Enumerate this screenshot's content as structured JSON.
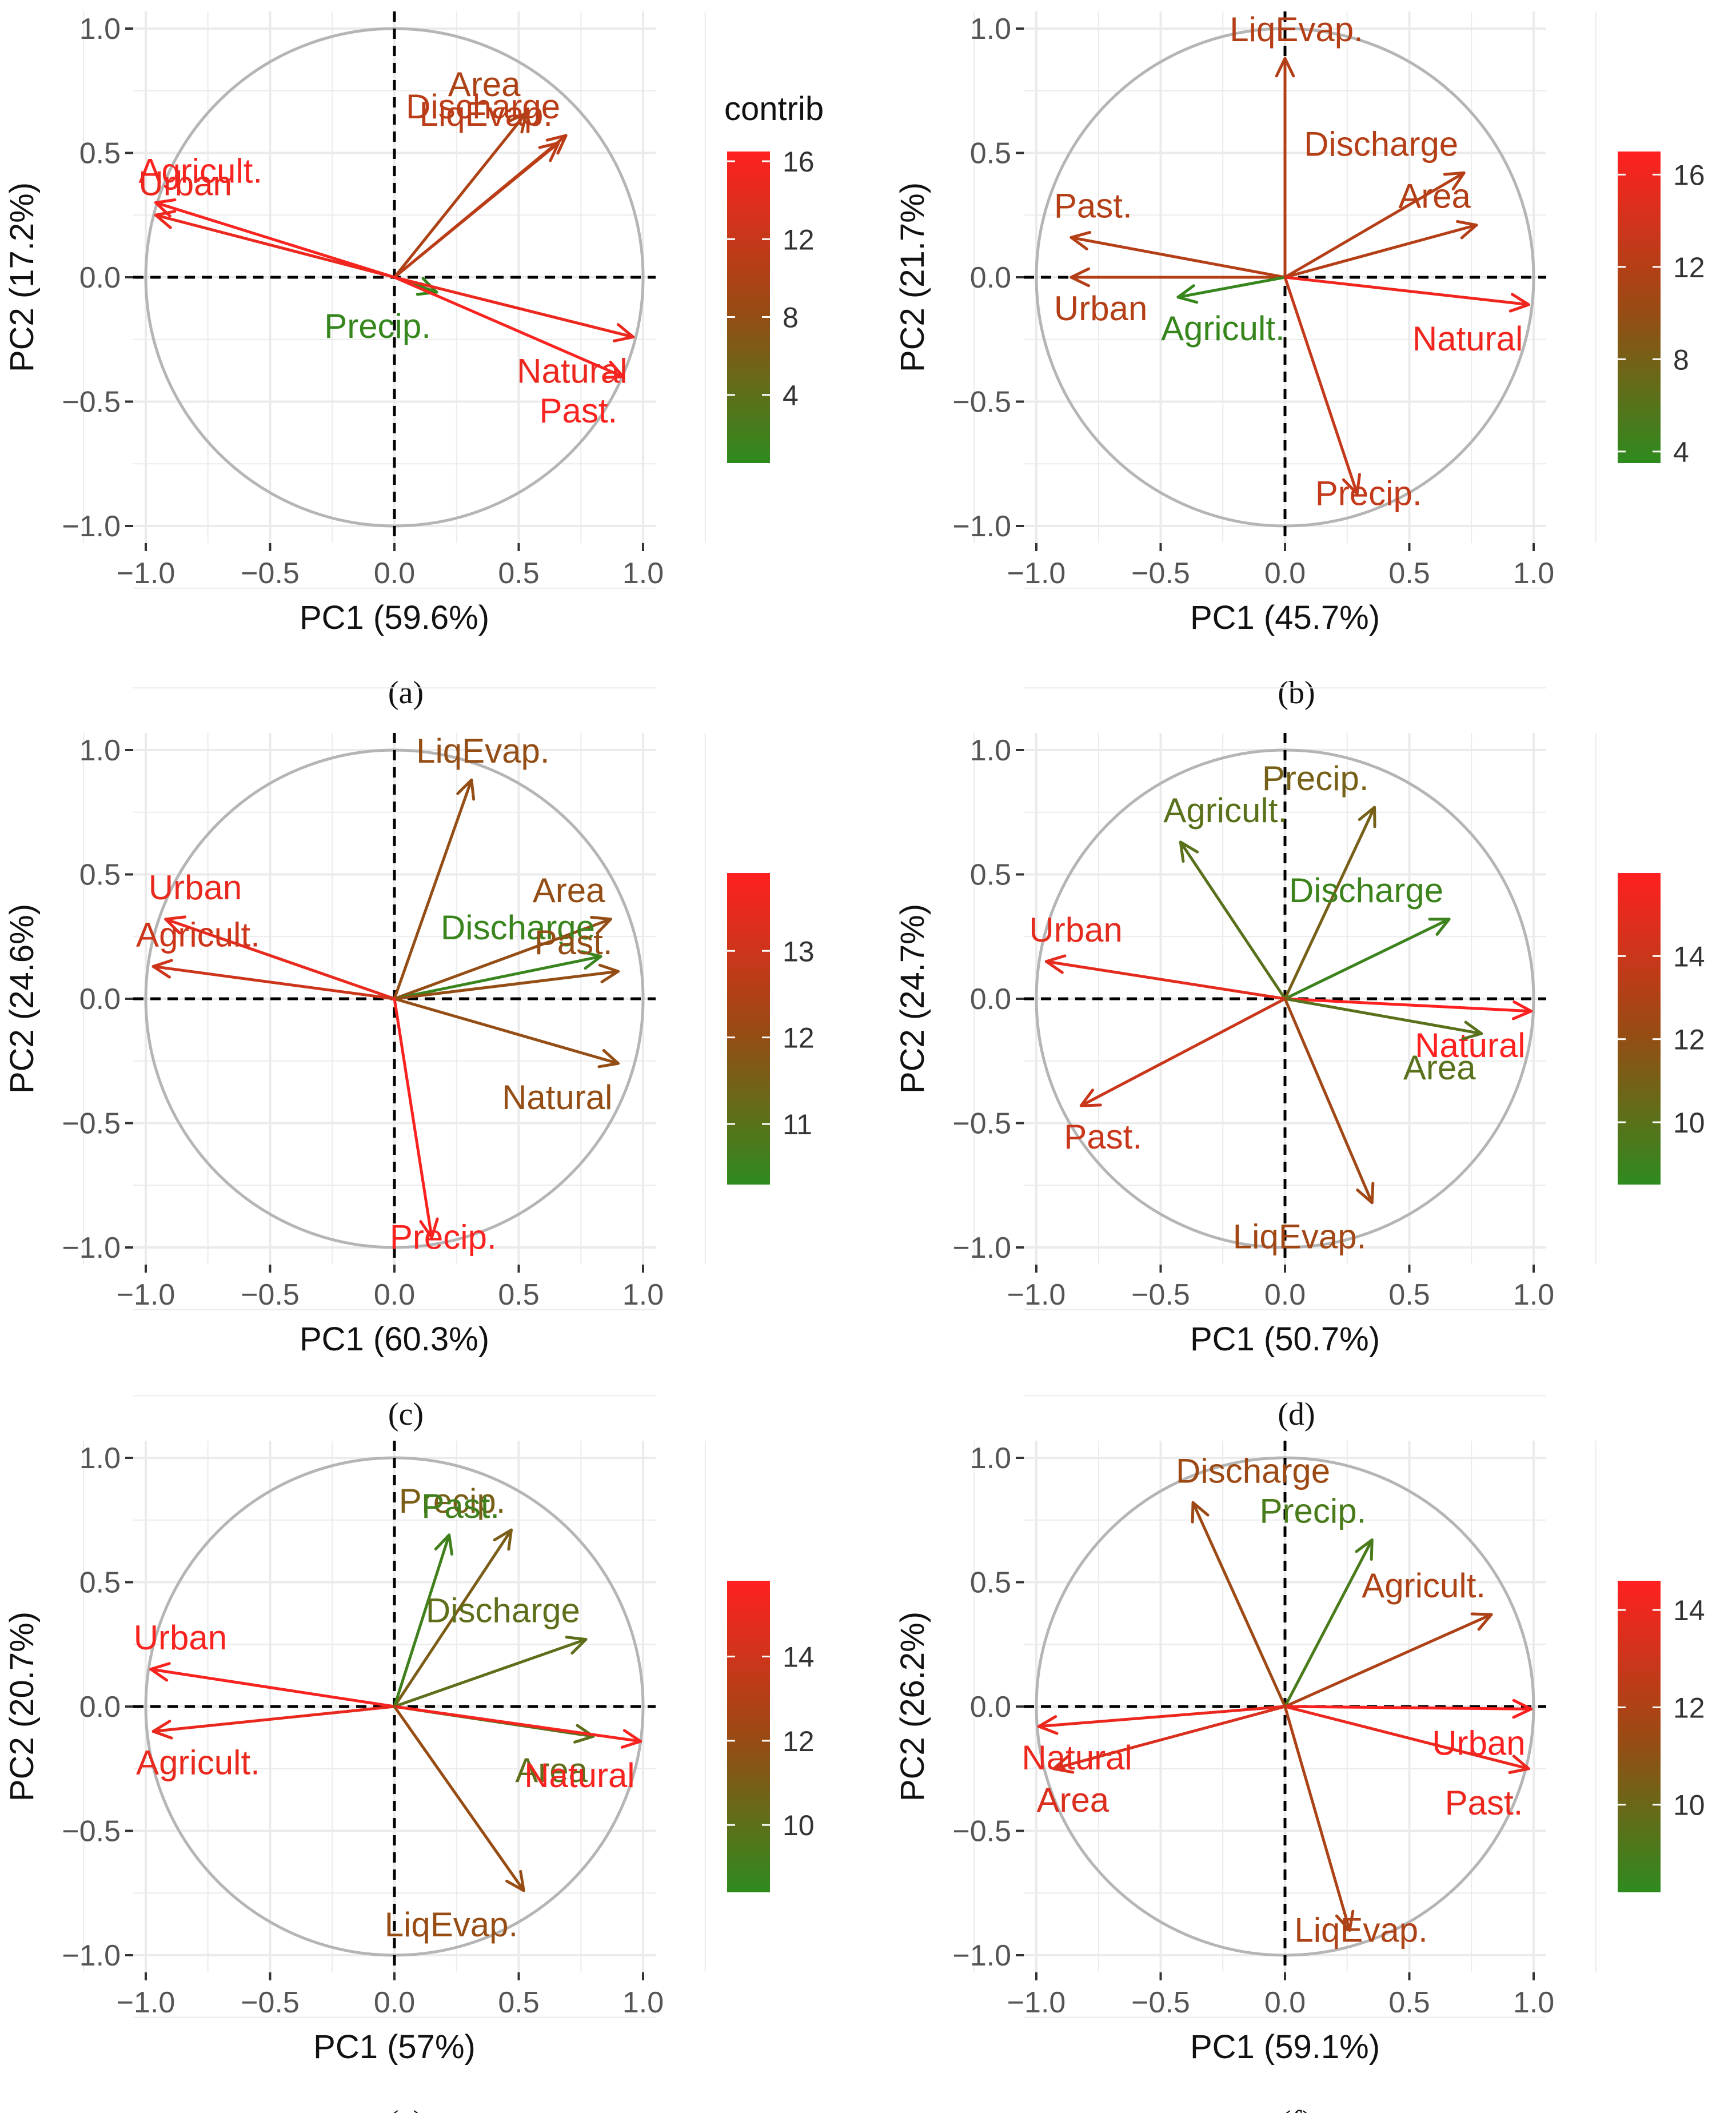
{
  "chart_data": [
    {
      "panel": "a",
      "type": "pca_variable_correlation_circle",
      "xlabel": "PC1 (59.6%)",
      "ylabel": "PC2 (17.2%)",
      "xlim": [
        -1.0,
        1.0
      ],
      "ylim": [
        -1.0,
        1.0
      ],
      "xticks": [
        "−1.0",
        "−0.5",
        "0.0",
        "0.5",
        "1.0"
      ],
      "yticks": [
        "−1.0",
        "−0.5",
        "0.0",
        "0.5",
        "1.0"
      ],
      "legend": {
        "title": "contrib",
        "ticks": [
          4,
          8,
          12,
          16
        ],
        "range": [
          0.5,
          16.5
        ]
      },
      "variables": [
        {
          "name": "Area",
          "x": 0.53,
          "y": 0.66,
          "contrib": 10
        },
        {
          "name": "Discharge",
          "x": 0.69,
          "y": 0.57,
          "contrib": 11
        },
        {
          "name": "LiqEvap.",
          "x": 0.66,
          "y": 0.54,
          "contrib": 11
        },
        {
          "name": "Agricult.",
          "x": -0.96,
          "y": 0.3,
          "contrib": 16
        },
        {
          "name": "Urban",
          "x": -0.96,
          "y": 0.25,
          "contrib": 15
        },
        {
          "name": "Precip.",
          "x": 0.17,
          "y": -0.06,
          "contrib": 1
        },
        {
          "name": "Natural",
          "x": 0.96,
          "y": -0.24,
          "contrib": 15
        },
        {
          "name": "Past.",
          "x": 0.92,
          "y": -0.4,
          "contrib": 16
        }
      ]
    },
    {
      "panel": "b",
      "type": "pca_variable_correlation_circle",
      "xlabel": "PC1 (45.7%)",
      "ylabel": "PC2 (21.7%)",
      "xlim": [
        -1.0,
        1.0
      ],
      "ylim": [
        -1.0,
        1.0
      ],
      "xticks": [
        "−1.0",
        "−0.5",
        "0.0",
        "0.5",
        "1.0"
      ],
      "yticks": [
        "−1.0",
        "−0.5",
        "0.0",
        "0.5",
        "1.0"
      ],
      "legend": {
        "title": "",
        "ticks": [
          4,
          8,
          12,
          16
        ],
        "range": [
          3.5,
          17
        ]
      },
      "variables": [
        {
          "name": "LiqEvap.",
          "x": 0.0,
          "y": 0.88,
          "contrib": 12
        },
        {
          "name": "Discharge",
          "x": 0.72,
          "y": 0.42,
          "contrib": 12
        },
        {
          "name": "Past.",
          "x": -0.86,
          "y": 0.16,
          "contrib": 12
        },
        {
          "name": "Area",
          "x": 0.77,
          "y": 0.21,
          "contrib": 12
        },
        {
          "name": "Urban",
          "x": -0.86,
          "y": 0.0,
          "contrib": 12
        },
        {
          "name": "Agricult.",
          "x": -0.43,
          "y": -0.08,
          "contrib": 4
        },
        {
          "name": "Natural",
          "x": 0.98,
          "y": -0.11,
          "contrib": 16
        },
        {
          "name": "Precip.",
          "x": 0.29,
          "y": -0.87,
          "contrib": 13
        }
      ]
    },
    {
      "panel": "c",
      "type": "pca_variable_correlation_circle",
      "xlabel": "PC1 (60.3%)",
      "ylabel": "PC2 (24.6%)",
      "xlim": [
        -1.0,
        1.0
      ],
      "ylim": [
        -1.0,
        1.0
      ],
      "xticks": [
        "−1.0",
        "−0.5",
        "0.0",
        "0.5",
        "1.0"
      ],
      "yticks": [
        "−1.0",
        "−0.5",
        "0.0",
        "0.5",
        "1.0"
      ],
      "legend": {
        "title": "",
        "ticks": [
          11,
          12,
          13
        ],
        "range": [
          10.3,
          13.9
        ]
      },
      "variables": [
        {
          "name": "LiqEvap.",
          "x": 0.31,
          "y": 0.88,
          "contrib": 12
        },
        {
          "name": "Urban",
          "x": -0.92,
          "y": 0.32,
          "contrib": 13.5
        },
        {
          "name": "Area",
          "x": 0.87,
          "y": 0.32,
          "contrib": 12
        },
        {
          "name": "Discharge",
          "x": 0.83,
          "y": 0.17,
          "contrib": 10.5
        },
        {
          "name": "Past.",
          "x": 0.9,
          "y": 0.11,
          "contrib": 12
        },
        {
          "name": "Agricult.",
          "x": -0.97,
          "y": 0.13,
          "contrib": 13
        },
        {
          "name": "Natural",
          "x": 0.9,
          "y": -0.26,
          "contrib": 12
        },
        {
          "name": "Precip.",
          "x": 0.15,
          "y": -0.96,
          "contrib": 13.8
        }
      ]
    },
    {
      "panel": "d",
      "type": "pca_variable_correlation_circle",
      "xlabel": "PC1 (50.7%)",
      "ylabel": "PC2 (24.7%)",
      "xlim": [
        -1.0,
        1.0
      ],
      "ylim": [
        -1.0,
        1.0
      ],
      "xticks": [
        "−1.0",
        "−0.5",
        "0.0",
        "0.5",
        "1.0"
      ],
      "yticks": [
        "−1.0",
        "−0.5",
        "0.0",
        "0.5",
        "1.0"
      ],
      "legend": {
        "title": "",
        "ticks": [
          10,
          12,
          14
        ],
        "range": [
          8.5,
          16
        ]
      },
      "variables": [
        {
          "name": "Precip.",
          "x": 0.36,
          "y": 0.77,
          "contrib": 11
        },
        {
          "name": "Agricult.",
          "x": -0.42,
          "y": 0.63,
          "contrib": 10
        },
        {
          "name": "Discharge",
          "x": 0.66,
          "y": 0.32,
          "contrib": 9
        },
        {
          "name": "Urban",
          "x": -0.96,
          "y": 0.15,
          "contrib": 15
        },
        {
          "name": "Natural",
          "x": 0.99,
          "y": -0.05,
          "contrib": 16
        },
        {
          "name": "Area",
          "x": 0.79,
          "y": -0.14,
          "contrib": 10
        },
        {
          "name": "Past.",
          "x": -0.82,
          "y": -0.43,
          "contrib": 14
        },
        {
          "name": "LiqEvap.",
          "x": 0.35,
          "y": -0.82,
          "contrib": 12.5
        }
      ]
    },
    {
      "panel": "e",
      "type": "pca_variable_correlation_circle",
      "xlabel": "PC1 (57%)",
      "ylabel": "PC2 (20.7%)",
      "xlim": [
        -1.0,
        1.0
      ],
      "ylim": [
        -1.0,
        1.0
      ],
      "xticks": [
        "−1.0",
        "−0.5",
        "0.0",
        "0.5",
        "1.0"
      ],
      "yticks": [
        "−1.0",
        "−0.5",
        "0.0",
        "0.5",
        "1.0"
      ],
      "legend": {
        "title": "",
        "ticks": [
          10,
          12,
          14
        ],
        "range": [
          8.4,
          15.8
        ]
      },
      "variables": [
        {
          "name": "Precip.",
          "x": 0.47,
          "y": 0.71,
          "contrib": 11
        },
        {
          "name": "Past.",
          "x": 0.22,
          "y": 0.69,
          "contrib": 9
        },
        {
          "name": "Discharge",
          "x": 0.77,
          "y": 0.27,
          "contrib": 10
        },
        {
          "name": "Urban",
          "x": -0.98,
          "y": 0.15,
          "contrib": 15.5
        },
        {
          "name": "Area",
          "x": 0.8,
          "y": -0.12,
          "contrib": 10
        },
        {
          "name": "Agricult.",
          "x": -0.97,
          "y": -0.1,
          "contrib": 15
        },
        {
          "name": "Natural",
          "x": 0.99,
          "y": -0.14,
          "contrib": 15.5
        },
        {
          "name": "LiqEvap.",
          "x": 0.52,
          "y": -0.74,
          "contrib": 12
        }
      ]
    },
    {
      "panel": "f",
      "type": "pca_variable_correlation_circle",
      "xlabel": "PC1 (59.1%)",
      "ylabel": "PC2 (26.2%)",
      "xlim": [
        -1.0,
        1.0
      ],
      "ylim": [
        -1.0,
        1.0
      ],
      "xticks": [
        "−1.0",
        "−0.5",
        "0.0",
        "0.5",
        "1.0"
      ],
      "yticks": [
        "−1.0",
        "−0.5",
        "0.0",
        "0.5",
        "1.0"
      ],
      "legend": {
        "title": "",
        "ticks": [
          10,
          12,
          14
        ],
        "range": [
          8.2,
          14.6
        ]
      },
      "variables": [
        {
          "name": "Precip.",
          "x": 0.35,
          "y": 0.67,
          "contrib": 9
        },
        {
          "name": "Discharge",
          "x": -0.37,
          "y": 0.82,
          "contrib": 11.5
        },
        {
          "name": "Agricult.",
          "x": 0.83,
          "y": 0.37,
          "contrib": 12
        },
        {
          "name": "Urban",
          "x": 0.99,
          "y": -0.01,
          "contrib": 14.5
        },
        {
          "name": "Natural",
          "x": -0.99,
          "y": -0.08,
          "contrib": 14
        },
        {
          "name": "Area",
          "x": -0.93,
          "y": -0.25,
          "contrib": 13.5
        },
        {
          "name": "Past.",
          "x": 0.98,
          "y": -0.25,
          "contrib": 14
        },
        {
          "name": "LiqEvap.",
          "x": 0.26,
          "y": -0.9,
          "contrib": 12
        }
      ]
    }
  ],
  "panel_captions": [
    "(a)",
    "(b)",
    "(c)",
    "(d)",
    "(e)",
    "(f)"
  ],
  "colors": {
    "low": "#2e8b1e",
    "mid": "#9a4a14",
    "high": "#ff2020",
    "grid": "#ebebeb",
    "circle": "#b5b5b5",
    "axis_text": "#555555"
  }
}
